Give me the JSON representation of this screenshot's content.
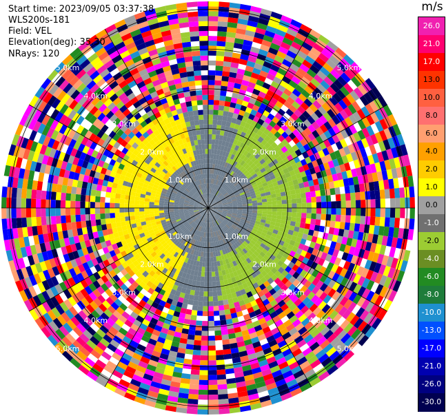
{
  "header": {
    "start_time": "Start time: 2023/09/05 03:37:38",
    "site": "WLS200s-181",
    "field": "Field: VEL",
    "elevation": "Elevation(deg): 35.30",
    "nrays": "NRays: 120"
  },
  "colorbar": {
    "unit": "m/s",
    "ticks": [
      "26.0",
      "21.0",
      "17.0",
      "13.0",
      "10.0",
      "8.0",
      "6.0",
      "4.0",
      "2.0",
      "1.0",
      "0.0",
      "-1.0",
      "-2.0",
      "-4.0",
      "-6.0",
      "-8.0",
      "-10.0",
      "-13.0",
      "-17.0",
      "-21.0",
      "-26.0",
      "-30.0"
    ],
    "colors": [
      "#f020b0",
      "#ff0070",
      "#ff0000",
      "#ff3300",
      "#ff6040",
      "#ff7070",
      "#ff9f70",
      "#ffa000",
      "#ffcc00",
      "#ffff00",
      "#a0a0a0",
      "#707070",
      "#9ccc33",
      "#6b8e23",
      "#228b22",
      "#1e7c3a",
      "#1e90d0",
      "#0050ff",
      "#0000ff",
      "#0000b0",
      "#000080",
      "#000050"
    ]
  },
  "range_labels": [
    "1.0km",
    "2.0km",
    "3.0km",
    "4.0km",
    "5.0km"
  ],
  "chart_data": {
    "type": "heatmap",
    "projection": "polar PPI",
    "field": "VEL",
    "units": "m/s",
    "nrays": 120,
    "range_rings_km": [
      1.0,
      2.0,
      3.0,
      4.0,
      5.0
    ],
    "max_range_km": 5.2,
    "clim": [
      -30.0,
      26.0
    ],
    "azimuth_lines_deg": [
      0,
      30,
      60,
      90,
      120,
      150,
      180,
      210,
      240,
      270,
      300,
      330
    ],
    "velocity_pattern": {
      "inner_gray_radius_km": 1.2,
      "receding_yellow_azimuth_deg": [
        205,
        345
      ],
      "approaching_green_azimuth_deg": [
        20,
        170
      ],
      "signal_limit_km": 2.3,
      "beyond_limit": "noise"
    }
  }
}
